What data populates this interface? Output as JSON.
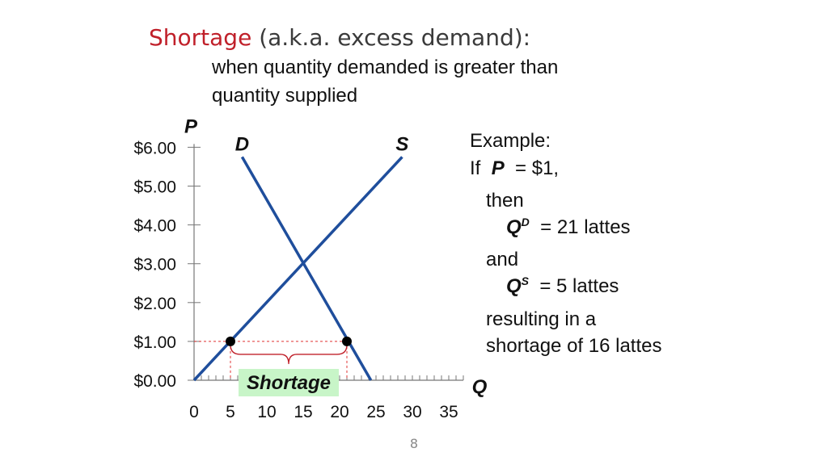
{
  "header": {
    "title_highlight": "Shortage",
    "title_rest": " (a.k.a. excess demand):",
    "subtitle_line1": "when quantity demanded is greater than",
    "subtitle_line2": "quantity supplied"
  },
  "example": {
    "label": "Example:",
    "if_word": "If",
    "p_symbol": "P",
    "p_value": "=  $1,",
    "then": "then",
    "qd_symbol": "Q",
    "qd_sup": "D",
    "qd_value": "=  21 lattes",
    "and": "and",
    "qs_symbol": "Q",
    "qs_sup": "S",
    "qs_value": "=  5 lattes",
    "result_line1": "resulting in a",
    "result_line2": "shortage of 16 lattes"
  },
  "page_number": "8",
  "colors": {
    "curve": "#1f4e9c",
    "title_accent": "#c0202a",
    "brace": "#c0202a",
    "dashed": "#e03030",
    "shortage_box": "#c8f5c8"
  },
  "chart_data": {
    "type": "line",
    "xlabel": "Q",
    "ylabel": "P",
    "xlim": [
      0,
      37
    ],
    "ylim": [
      0,
      6
    ],
    "x_ticks": [
      0,
      5,
      10,
      15,
      20,
      25,
      30,
      35
    ],
    "x_tick_labels": [
      "0",
      "5",
      "10",
      "15",
      "20",
      "25",
      "30",
      "35"
    ],
    "y_ticks": [
      0,
      1,
      2,
      3,
      4,
      5,
      6
    ],
    "y_tick_labels": [
      "$0.00",
      "$1.00",
      "$2.00",
      "$3.00",
      "$4.00",
      "$5.00",
      "$6.00"
    ],
    "series": [
      {
        "name": "D",
        "points": [
          [
            6.6,
            5.75
          ],
          [
            24.3,
            0
          ]
        ]
      },
      {
        "name": "S",
        "points": [
          [
            0,
            0
          ],
          [
            28.6,
            5.75
          ]
        ]
      }
    ],
    "markers": [
      [
        5,
        1
      ],
      [
        21,
        1
      ]
    ],
    "reference_price": 1,
    "shortage_range": [
      5,
      21
    ],
    "annotation": "Shortage",
    "grid": false
  }
}
